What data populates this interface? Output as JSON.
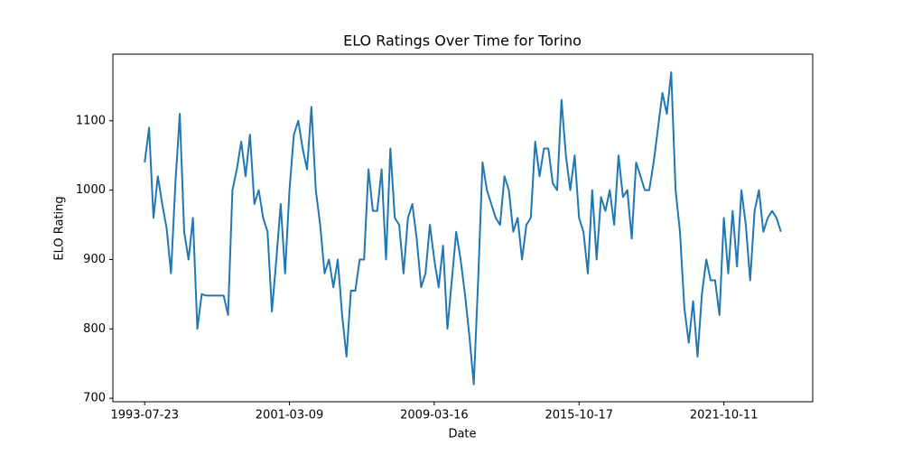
{
  "chart_data": {
    "type": "line",
    "title": "ELO Ratings Over Time for Torino",
    "x_label": "Date",
    "y_label": "ELO Rating",
    "categories": [
      "1993-07-23",
      null,
      null,
      null,
      null,
      null,
      null,
      null,
      null,
      null,
      null,
      null,
      null,
      null,
      null,
      null,
      null,
      null,
      null,
      null,
      null,
      null,
      null,
      null,
      null,
      null,
      null,
      null,
      null,
      null,
      null,
      null,
      null,
      "2001-03-09",
      null,
      null,
      null,
      null,
      null,
      null,
      null,
      null,
      null,
      null,
      null,
      null,
      null,
      null,
      null,
      null,
      null,
      null,
      null,
      null,
      null,
      null,
      null,
      null,
      null,
      null,
      null,
      null,
      null,
      null,
      null,
      null,
      "2009-03-16",
      null,
      null,
      null,
      null,
      null,
      null,
      null,
      null,
      null,
      null,
      null,
      null,
      null,
      null,
      null,
      null,
      null,
      null,
      null,
      null,
      null,
      null,
      null,
      null,
      null,
      null,
      null,
      null,
      null,
      null,
      null,
      null,
      "2015-10-17",
      null,
      null,
      null,
      null,
      null,
      null,
      null,
      null,
      null,
      null,
      null,
      null,
      null,
      null,
      null,
      null,
      null,
      null,
      null,
      null,
      null,
      null,
      null,
      null,
      null,
      null,
      null,
      null,
      null,
      null,
      null,
      null,
      "2021-10-11",
      null,
      null,
      null,
      null,
      null,
      null,
      null,
      null,
      null,
      null,
      null,
      null,
      null
    ],
    "series": [
      {
        "name": "Torino",
        "color": "#1f77b4",
        "values": [
          1040,
          1090,
          960,
          1020,
          980,
          945,
          880,
          1010,
          1110,
          940,
          900,
          960,
          800,
          850,
          848,
          848,
          848,
          848,
          848,
          820,
          1000,
          1030,
          1070,
          1020,
          1080,
          980,
          1000,
          960,
          940,
          825,
          900,
          980,
          880,
          1000,
          1080,
          1100,
          1060,
          1030,
          1120,
          1000,
          950,
          880,
          900,
          860,
          900,
          820,
          760,
          855,
          855,
          900,
          900,
          1030,
          970,
          970,
          1030,
          900,
          1060,
          960,
          950,
          880,
          960,
          980,
          930,
          860,
          880,
          950,
          900,
          860,
          920,
          800,
          870,
          940,
          900,
          850,
          790,
          720,
          870,
          1040,
          1000,
          980,
          960,
          950,
          1020,
          1000,
          940,
          960,
          900,
          950,
          960,
          1070,
          1020,
          1060,
          1060,
          1010,
          1000,
          1130,
          1050,
          1000,
          1050,
          960,
          940,
          880,
          1000,
          900,
          990,
          970,
          1000,
          950,
          1050,
          990,
          1000,
          930,
          1040,
          1020,
          1000,
          1000,
          1040,
          1090,
          1140,
          1110,
          1170,
          1000,
          940,
          830,
          780,
          840,
          760,
          850,
          900,
          870,
          870,
          820,
          960,
          880,
          970,
          890,
          1000,
          950,
          870,
          970,
          1000,
          940,
          960,
          970,
          960,
          940
        ]
      }
    ],
    "ylim": [
      695,
      1196
    ],
    "yticks": [
      700,
      800,
      900,
      1000,
      1100
    ]
  }
}
